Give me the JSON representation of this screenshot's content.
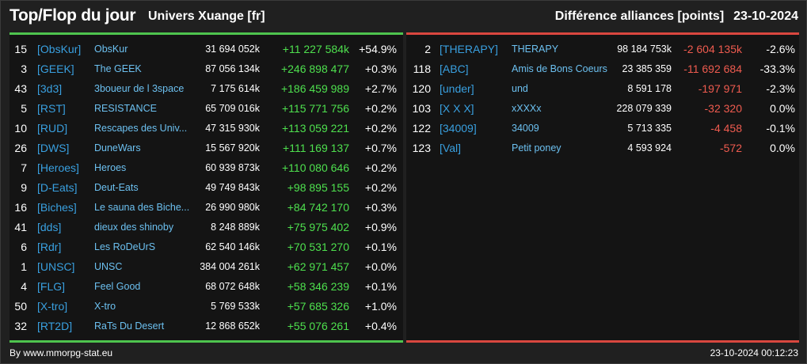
{
  "header": {
    "title": "Top/Flop du jour",
    "subtitle": "Univers Xuange [fr]",
    "metric": "Différence alliances [points]",
    "date": "23-10-2024"
  },
  "colors": {
    "top_accent": "#4ec44e",
    "flop_accent": "#d9473f",
    "tag": "#39a0e0",
    "name": "#6cc0f0",
    "gain": "#4ee04e",
    "loss": "#ef5b4f"
  },
  "top": [
    {
      "rank": "15",
      "tag": "[ObsKur]",
      "name": "ObsKur",
      "points": "31 694 052k",
      "diff": "+11 227 584k",
      "pct": "+54.9%"
    },
    {
      "rank": "3",
      "tag": "[GEEK]",
      "name": "The GEEK",
      "points": "87 056 134k",
      "diff": "+246 898 477",
      "pct": "+0.3%"
    },
    {
      "rank": "43",
      "tag": "[3d3]",
      "name": "3boueur de l 3space",
      "points": "7 175 614k",
      "diff": "+186 459 989",
      "pct": "+2.7%"
    },
    {
      "rank": "5",
      "tag": "[RST]",
      "name": "RESISTANCE",
      "points": "65 709 016k",
      "diff": "+115 771 756",
      "pct": "+0.2%"
    },
    {
      "rank": "10",
      "tag": "[RUD]",
      "name": "Rescapes des Univ...",
      "points": "47 315 930k",
      "diff": "+113 059 221",
      "pct": "+0.2%"
    },
    {
      "rank": "26",
      "tag": "[DWS]",
      "name": "DuneWars",
      "points": "15 567 920k",
      "diff": "+111 169 137",
      "pct": "+0.7%"
    },
    {
      "rank": "7",
      "tag": "[Heroes]",
      "name": "Heroes",
      "points": "60 939 873k",
      "diff": "+110 080 646",
      "pct": "+0.2%"
    },
    {
      "rank": "9",
      "tag": "[D-Eats]",
      "name": "Deut-Eats",
      "points": "49 749 843k",
      "diff": "+98 895 155",
      "pct": "+0.2%"
    },
    {
      "rank": "16",
      "tag": "[Biches]",
      "name": "Le sauna des Biche...",
      "points": "26 990 980k",
      "diff": "+84 742 170",
      "pct": "+0.3%"
    },
    {
      "rank": "41",
      "tag": "[dds]",
      "name": "dieux des shinoby",
      "points": "8 248 889k",
      "diff": "+75 975 402",
      "pct": "+0.9%"
    },
    {
      "rank": "6",
      "tag": "[Rdr]",
      "name": "Les RoDeUrS",
      "points": "62 540 146k",
      "diff": "+70 531 270",
      "pct": "+0.1%"
    },
    {
      "rank": "1",
      "tag": "[UNSC]",
      "name": "UNSC",
      "points": "384 004 261k",
      "diff": "+62 971 457",
      "pct": "+0.0%"
    },
    {
      "rank": "4",
      "tag": "[FLG]",
      "name": "Feel Good",
      "points": "68 072 648k",
      "diff": "+58 346 239",
      "pct": "+0.1%"
    },
    {
      "rank": "50",
      "tag": "[X-tro]",
      "name": "X-tro",
      "points": "5 769 533k",
      "diff": "+57 685 326",
      "pct": "+1.0%"
    },
    {
      "rank": "32",
      "tag": "[RT2D]",
      "name": "RaTs Du Desert",
      "points": "12 868 652k",
      "diff": "+55 076 261",
      "pct": "+0.4%"
    }
  ],
  "flop": [
    {
      "rank": "2",
      "tag": "[THERAPY]",
      "name": "THERAPY",
      "points": "98 184 753k",
      "diff": "-2 604 135k",
      "pct": "-2.6%"
    },
    {
      "rank": "118",
      "tag": "[ABC]",
      "name": "Amis de Bons Coeurs",
      "points": "23 385 359",
      "diff": "-11 692 684",
      "pct": "-33.3%"
    },
    {
      "rank": "120",
      "tag": "[under]",
      "name": "und",
      "points": "8 591 178",
      "diff": "-197 971",
      "pct": "-2.3%"
    },
    {
      "rank": "103",
      "tag": "[X X X]",
      "name": "xXXXx",
      "points": "228 079 339",
      "diff": "-32 320",
      "pct": "0.0%"
    },
    {
      "rank": "122",
      "tag": "[34009]",
      "name": "34009",
      "points": "5 713 335",
      "diff": "-4 458",
      "pct": "-0.1%"
    },
    {
      "rank": "123",
      "tag": "[Val]",
      "name": "Petit poney",
      "points": "4 593 924",
      "diff": "-572",
      "pct": "0.0%"
    }
  ],
  "footer": {
    "source": "By www.mmorpg-stat.eu",
    "timestamp": "23-10-2024 00:12:23"
  }
}
